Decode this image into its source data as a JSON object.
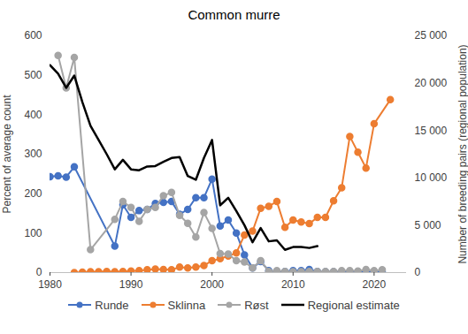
{
  "chart_data": {
    "type": "line",
    "title": "Common murre",
    "y_label": "Percent of average count",
    "y2_label": "Number of breeding pairs (regional population)",
    "xlim": [
      1980,
      2024
    ],
    "xticks": [
      1980,
      1990,
      2000,
      2010,
      2020
    ],
    "ylim": [
      0,
      600
    ],
    "yticks": [
      0,
      100,
      200,
      300,
      400,
      500,
      600
    ],
    "y2lim": [
      0,
      25000
    ],
    "y2ticks": [
      0,
      {
        "value": 5000,
        "label": "5 000"
      },
      {
        "value": 10000,
        "label": "10 000"
      },
      {
        "value": 15000,
        "label": "15 000"
      },
      {
        "value": 20000,
        "label": "20 000"
      },
      {
        "value": 25000,
        "label": "25 000"
      }
    ],
    "grid": false,
    "legend": "bottom",
    "series": [
      {
        "name": "Runde",
        "color": "#4472c4",
        "marker": "circle",
        "line_style": "solid",
        "x": [
          1980,
          1981,
          1982,
          1983,
          1988,
          1989,
          1990,
          1991,
          1992,
          1993,
          1994,
          1995,
          1996,
          1997,
          1998,
          1999,
          2000,
          2001,
          2002,
          2003,
          2004,
          2005,
          2006,
          2007,
          2008,
          2009,
          2010,
          2011,
          2012,
          2013,
          2014,
          2015,
          2016,
          2017,
          2018,
          2019,
          2020,
          2021
        ],
        "values": [
          243,
          245,
          242,
          268,
          67,
          172,
          140,
          157,
          160,
          175,
          178,
          180,
          148,
          160,
          190,
          190,
          237,
          118,
          133,
          100,
          45,
          12,
          28,
          5,
          3,
          3,
          5,
          5,
          8,
          3,
          2,
          2,
          2,
          3,
          2,
          2,
          2,
          2
        ]
      },
      {
        "name": "Sklinna",
        "color": "#ed7d31",
        "marker": "circle",
        "line_style": "solid",
        "x": [
          1983,
          1984,
          1985,
          1986,
          1987,
          1988,
          1989,
          1990,
          1991,
          1992,
          1993,
          1994,
          1995,
          1996,
          1997,
          1998,
          1999,
          2000,
          2001,
          2002,
          2003,
          2004,
          2005,
          2006,
          2007,
          2008,
          2009,
          2010,
          2011,
          2012,
          2013,
          2014,
          2015,
          2016,
          2017,
          2018,
          2019,
          2020,
          2022
        ],
        "values": [
          0,
          1,
          2,
          2,
          3,
          2,
          3,
          4,
          5,
          7,
          9,
          8,
          7,
          14,
          12,
          14,
          18,
          30,
          35,
          42,
          50,
          95,
          105,
          163,
          168,
          180,
          115,
          133,
          128,
          124,
          140,
          140,
          182,
          215,
          345,
          305,
          265,
          377,
          438
        ]
      },
      {
        "name": "Røst",
        "color": "#a5a5a5",
        "marker": "circle",
        "line_style": "solid",
        "x": [
          1981,
          1982,
          1983,
          1985,
          1988,
          1989,
          1990,
          1991,
          1992,
          1993,
          1994,
          1995,
          1996,
          1997,
          1998,
          1999,
          2000,
          2001,
          2002,
          2003,
          2004,
          2005,
          2006,
          2007,
          2008,
          2009,
          2010,
          2011,
          2012,
          2013,
          2014,
          2015,
          2016,
          2017,
          2018,
          2019,
          2020,
          2021
        ],
        "values": [
          550,
          468,
          545,
          58,
          135,
          180,
          165,
          130,
          160,
          165,
          195,
          203,
          145,
          125,
          90,
          152,
          112,
          48,
          47,
          30,
          27,
          12,
          30,
          3,
          5,
          3,
          2,
          2,
          3,
          3,
          3,
          3,
          5,
          5,
          4,
          8,
          5,
          7
        ]
      },
      {
        "name": "Regional estimate",
        "color": "#000000",
        "marker": "none",
        "line_style": "solid",
        "axis": "y2",
        "x": [
          1980,
          1981,
          1982,
          1983,
          1984,
          1985,
          1986,
          1987,
          1988,
          1989,
          1990,
          1991,
          1992,
          1993,
          1994,
          1995,
          1996,
          1997,
          1998,
          1999,
          2000,
          2001,
          2002,
          2003,
          2004,
          2005,
          2006,
          2007,
          2008,
          2009,
          2010,
          2011,
          2012,
          2013
        ],
        "values": [
          21900,
          21000,
          19500,
          20800,
          18000,
          15500,
          14000,
          12500,
          10900,
          11900,
          10900,
          10800,
          11200,
          11250,
          11700,
          12100,
          12200,
          10200,
          9800,
          12100,
          14000,
          7100,
          7900,
          6500,
          5000,
          3200,
          4700,
          3300,
          3400,
          2400,
          2700,
          2700,
          2600,
          2800
        ]
      }
    ]
  }
}
